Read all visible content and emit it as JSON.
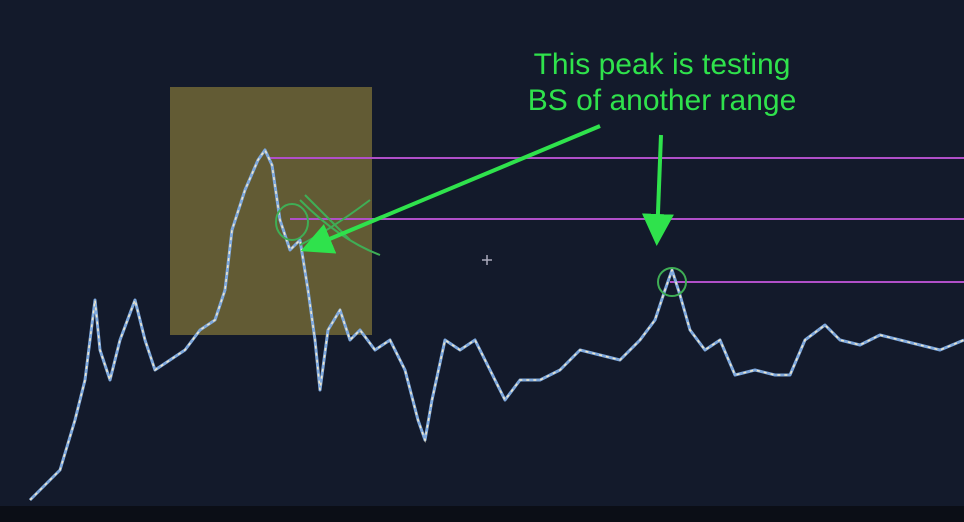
{
  "annotation": {
    "lines": [
      "This peak is testing",
      "BS of another range"
    ]
  }
}
